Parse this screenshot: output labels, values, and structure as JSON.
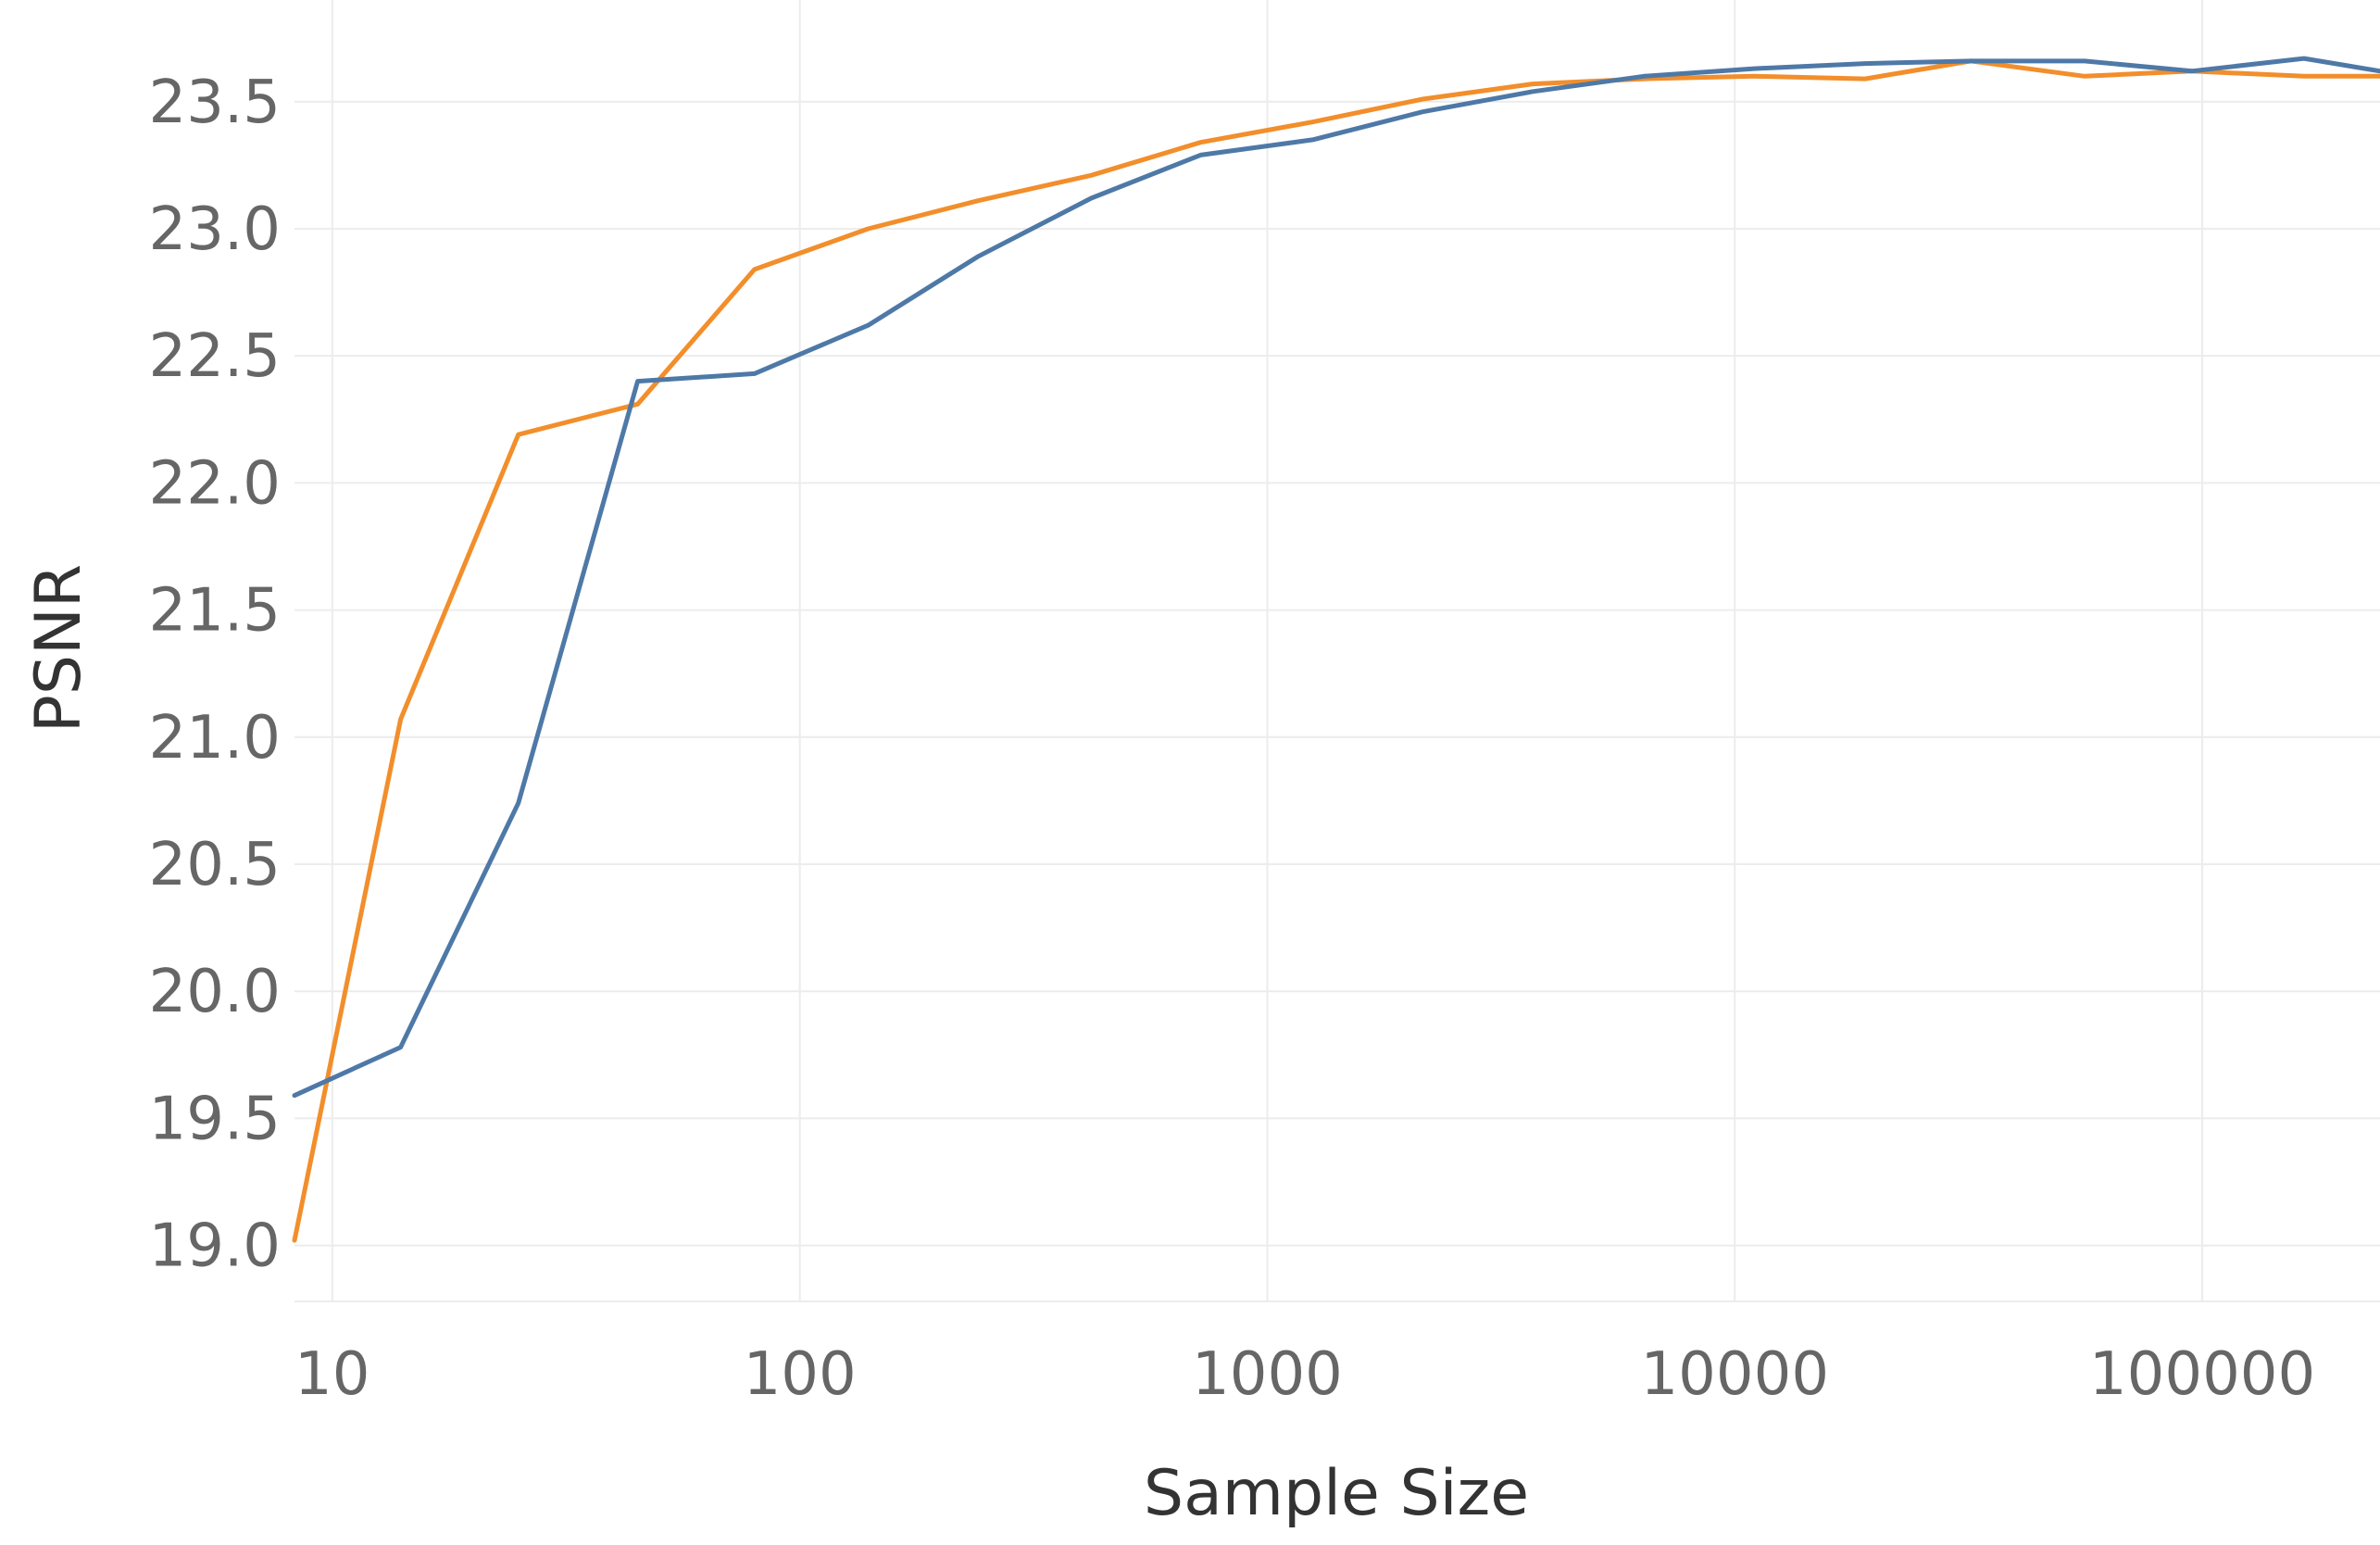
{
  "chart_data": {
    "type": "line",
    "xlabel": "Sample Size",
    "ylabel": "PSNR",
    "x_scale": "log",
    "xlim": [
      8.3,
      240000
    ],
    "ylim": [
      18.78,
      23.9
    ],
    "x_ticks": [
      10,
      100,
      1000,
      10000,
      100000
    ],
    "x_tick_labels": [
      "10",
      "100",
      "1000",
      "10000",
      "100000"
    ],
    "y_ticks": [
      19.0,
      19.5,
      20.0,
      20.5,
      21.0,
      21.5,
      22.0,
      22.5,
      23.0,
      23.5
    ],
    "y_tick_labels": [
      "19.0",
      "19.5",
      "20.0",
      "20.5",
      "21.0",
      "21.5",
      "22.0",
      "22.5",
      "23.0",
      "23.5"
    ],
    "grid": true,
    "legend": "none",
    "series": [
      {
        "color": "#f28e2b",
        "x": [
          8.3,
          14,
          25,
          45,
          80,
          140,
          240,
          420,
          720,
          1250,
          2150,
          3700,
          6400,
          11000,
          19000,
          32000,
          56000,
          95000,
          165000,
          240000
        ],
        "y": [
          19.02,
          21.07,
          22.19,
          22.31,
          22.84,
          23.0,
          23.11,
          23.21,
          23.34,
          23.42,
          23.51,
          23.57,
          23.59,
          23.6,
          23.59,
          23.66,
          23.6,
          23.62,
          23.6,
          23.6
        ]
      },
      {
        "color": "#4e79a7",
        "x": [
          8.3,
          14,
          25,
          45,
          80,
          140,
          240,
          420,
          720,
          1250,
          2150,
          3700,
          6400,
          11000,
          19000,
          32000,
          56000,
          95000,
          165000,
          240000
        ],
        "y": [
          19.59,
          19.78,
          20.74,
          22.4,
          22.43,
          22.62,
          22.89,
          23.12,
          23.29,
          23.35,
          23.46,
          23.54,
          23.6,
          23.63,
          23.65,
          23.66,
          23.66,
          23.62,
          23.67,
          23.62
        ]
      }
    ]
  }
}
